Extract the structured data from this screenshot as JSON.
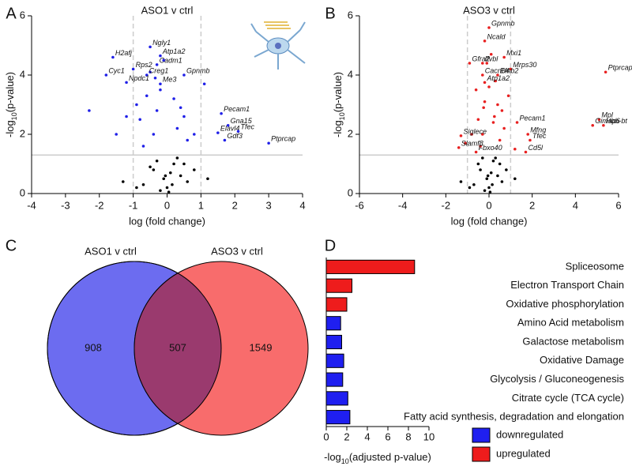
{
  "chart_data": [
    {
      "type": "volcano",
      "panel": "A",
      "title": "ASO1 v ctrl",
      "xlabel": "log (fold change)",
      "ylabel": [
        "-log",
        "10",
        "(p-value)"
      ],
      "xlim": [
        -4,
        4
      ],
      "xticks": [
        -4,
        -3,
        -2,
        -1,
        0,
        1,
        2,
        3,
        4
      ],
      "ylim": [
        0,
        6
      ],
      "yticks": [
        0,
        2,
        4,
        6
      ],
      "thresholds": {
        "x": [
          -1,
          1
        ],
        "y": 1.3
      },
      "series": [
        {
          "color": "#000000",
          "x": [
            -0.5,
            -0.3,
            -0.1,
            0,
            0.1,
            0.2,
            0.4,
            0.6,
            -0.7,
            0.8,
            -0.2,
            0.3,
            -0.9,
            1.2,
            -1.3,
            0.05,
            -0.05,
            0.15,
            -0.4,
            0.5
          ],
          "y": [
            0.9,
            1.1,
            0.5,
            0.2,
            0.7,
            1.0,
            0.6,
            0.4,
            0.3,
            0.8,
            0.1,
            1.2,
            0.2,
            0.5,
            0.4,
            0.05,
            0.6,
            0.3,
            0.8,
            1.0
          ]
        },
        {
          "color": "#2020e8",
          "x": [
            -0.4,
            -0.3,
            -0.6,
            -0.2,
            0.3,
            0.4,
            -0.8,
            -1.2,
            -1.5,
            -2.3,
            0.6,
            0.8,
            1.1,
            -0.5,
            -0.1,
            -0.9,
            0.2,
            -0.35,
            0.5,
            -0.7
          ],
          "y": [
            2.0,
            2.8,
            3.3,
            3.5,
            2.2,
            2.9,
            2.5,
            2.6,
            2.0,
            2.8,
            1.8,
            2.0,
            3.7,
            4.1,
            4.5,
            3.0,
            3.2,
            3.9,
            2.6,
            1.6
          ]
        }
      ],
      "annotation_color": "#2020e8",
      "annotations": [
        {
          "text": "H2afj",
          "x": -1.6,
          "y": 4.6
        },
        {
          "text": "Ngly1",
          "x": -0.5,
          "y": 4.95
        },
        {
          "text": "Atp1a2",
          "x": -0.2,
          "y": 4.65
        },
        {
          "text": "Cadm1",
          "x": -0.3,
          "y": 4.35
        },
        {
          "text": "Rps2",
          "x": -1.0,
          "y": 4.2
        },
        {
          "text": "Cyc1",
          "x": -1.8,
          "y": 4.0
        },
        {
          "text": "Creg1",
          "x": -0.6,
          "y": 4.0
        },
        {
          "text": "Gpnmb",
          "x": 0.5,
          "y": 4.0
        },
        {
          "text": "Npdc1",
          "x": -1.2,
          "y": 3.75
        },
        {
          "text": "Me3",
          "x": -0.2,
          "y": 3.7
        },
        {
          "text": "Pecam1",
          "x": 1.6,
          "y": 2.7
        },
        {
          "text": "Gna15",
          "x": 1.8,
          "y": 2.3
        },
        {
          "text": "Elavl4",
          "x": 1.5,
          "y": 2.05
        },
        {
          "text": "Tfec",
          "x": 2.1,
          "y": 2.1
        },
        {
          "text": "Gdf3",
          "x": 1.7,
          "y": 1.8
        },
        {
          "text": "Ptprcap",
          "x": 3.0,
          "y": 1.7
        }
      ]
    },
    {
      "type": "volcano",
      "panel": "B",
      "title": "ASO3 v ctrl",
      "xlabel": "log (fold change)",
      "ylabel": [
        "-log",
        "10",
        "(p-value)"
      ],
      "xlim": [
        -6,
        6
      ],
      "xticks": [
        -6,
        -4,
        -2,
        0,
        2,
        4,
        6
      ],
      "ylim": [
        0,
        6
      ],
      "yticks": [
        0,
        2,
        4,
        6
      ],
      "thresholds": {
        "x": [
          -1,
          1
        ],
        "y": 1.3
      },
      "series": [
        {
          "color": "#000000",
          "x": [
            -0.5,
            -0.3,
            -0.1,
            0,
            0.1,
            0.2,
            0.4,
            0.6,
            -0.7,
            0.8,
            -0.2,
            0.3,
            -0.9,
            1.2,
            -1.3,
            0.05,
            -0.05,
            0.15,
            -0.4,
            0.5
          ],
          "y": [
            1.0,
            1.2,
            0.5,
            0.2,
            0.7,
            1.1,
            0.6,
            0.4,
            0.3,
            0.8,
            0.1,
            1.2,
            0.2,
            0.5,
            0.4,
            0.05,
            0.6,
            0.3,
            0.8,
            1.0
          ]
        },
        {
          "color": "#e82020",
          "x": [
            -0.3,
            -0.2,
            -0.5,
            0.2,
            0.4,
            0.3,
            -0.8,
            0.7,
            0.9,
            -0.1,
            0.1,
            0.5,
            -0.6,
            0.6,
            -0.4,
            1.2,
            -1.1,
            0.25,
            -0.25,
            0.0
          ],
          "y": [
            2.0,
            3.1,
            2.5,
            2.4,
            3.0,
            3.8,
            2.0,
            2.2,
            3.3,
            4.4,
            4.7,
            1.8,
            3.5,
            2.8,
            1.6,
            1.5,
            1.7,
            2.6,
            2.9,
            3.6
          ]
        }
      ],
      "annotation_color": "#e82020",
      "annotations": [
        {
          "text": "Gpnmb",
          "x": 0.0,
          "y": 5.6
        },
        {
          "text": "Ncald",
          "x": -0.2,
          "y": 5.15
        },
        {
          "text": "Mxi1",
          "x": 0.7,
          "y": 4.6
        },
        {
          "text": "Gfra2",
          "x": -0.9,
          "y": 4.4
        },
        {
          "text": "Ifvbl",
          "x": -0.3,
          "y": 4.4
        },
        {
          "text": "Mrps30",
          "x": 1.0,
          "y": 4.2
        },
        {
          "text": "Cacnb4",
          "x": -0.3,
          "y": 4.0
        },
        {
          "text": "Efnb2",
          "x": 0.4,
          "y": 4.0
        },
        {
          "text": "Atp1a2",
          "x": -0.2,
          "y": 3.75
        },
        {
          "text": "Ptprcap",
          "x": 5.4,
          "y": 4.1
        },
        {
          "text": "Pecam1",
          "x": 1.3,
          "y": 2.4
        },
        {
          "text": "Mpl",
          "x": 5.1,
          "y": 2.5
        },
        {
          "text": "Gimap6",
          "x": 4.8,
          "y": 2.3
        },
        {
          "text": "Hbb-bt",
          "x": 5.3,
          "y": 2.3
        },
        {
          "text": "Siglece",
          "x": -1.3,
          "y": 1.95
        },
        {
          "text": "Mfng",
          "x": 1.8,
          "y": 2.0
        },
        {
          "text": "Tfec",
          "x": 1.9,
          "y": 1.8
        },
        {
          "text": "Slamf8",
          "x": -1.4,
          "y": 1.55
        },
        {
          "text": "Fbxo40",
          "x": -0.6,
          "y": 1.4
        },
        {
          "text": "Cd5l",
          "x": 1.7,
          "y": 1.4
        }
      ]
    },
    {
      "type": "venn",
      "panel": "C",
      "sets": [
        {
          "name": "ASO1 v ctrl",
          "color": "#6c6cf0",
          "only": 908
        },
        {
          "name": "ASO3 v ctrl",
          "color": "#f86c6c",
          "only": 1549
        }
      ],
      "overlap": 507,
      "overlap_color": "#9a3a6e"
    },
    {
      "type": "barh",
      "panel": "D",
      "categories": [
        "Spliceosome",
        "Electron Transport Chain",
        "Oxidative phosphorylation",
        "Amino Acid metabolism",
        "Galactose metabolism",
        "Oxidative Damage",
        "Glycolysis / Gluconeogenesis",
        "Citrate cycle (TCA cycle)",
        "Fatty acid synthesis, degradation and elongation"
      ],
      "series": [
        {
          "name": "downregulated",
          "color": "#1f1ff0",
          "values": [
            null,
            null,
            null,
            1.4,
            1.5,
            1.7,
            1.6,
            2.1,
            2.3
          ]
        },
        {
          "name": "upregulated",
          "color": "#ee1c1c",
          "values": [
            8.6,
            2.5,
            2.0,
            null,
            null,
            null,
            null,
            null,
            null
          ]
        }
      ],
      "xlim": [
        0,
        10
      ],
      "xticks": [
        0,
        2,
        4,
        6,
        8,
        10
      ],
      "xlabel": [
        "-log",
        "10",
        "(adjusted p-value)"
      ]
    }
  ]
}
